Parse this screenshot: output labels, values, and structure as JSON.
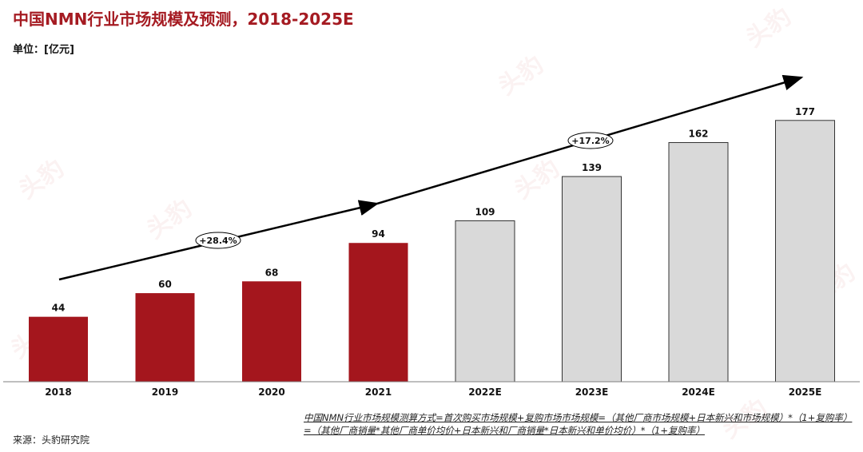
{
  "title": "中国NMN行业市场规模及预测，2018-2025E",
  "unit": "单位：[亿元]",
  "colors": {
    "actual": "#a4161d",
    "forecast": "#d9d9d9",
    "title": "#a51b22"
  },
  "chart_data": {
    "type": "bar",
    "categories": [
      "2018",
      "2019",
      "2020",
      "2021",
      "2022E",
      "2023E",
      "2024E",
      "2025E"
    ],
    "values": [
      44,
      60,
      68,
      94,
      109,
      139,
      162,
      177
    ],
    "value_labels": [
      "44",
      "60",
      "68",
      "94",
      "109",
      "139",
      "162",
      "177"
    ],
    "forecast_from_index": 4,
    "ylim": [
      0,
      185
    ],
    "grid": false,
    "annotations": [
      {
        "text": "+28.4%",
        "period": "2018-2021"
      },
      {
        "text": "+17.2%",
        "period": "2021-2025E"
      }
    ]
  },
  "formula": "中国NMN行业市场规模测算方式=首次购买市场规模+复购市场市场规模=（其他厂商市场规模+日本新兴和市场规模）*（1+复购率）=（其他厂商销量*其他厂商单价均价+日本新兴和厂商销量*日本新兴和单价均价）*（1+复购率）",
  "source": "来源：头豹研究院",
  "watermark": "头豹"
}
